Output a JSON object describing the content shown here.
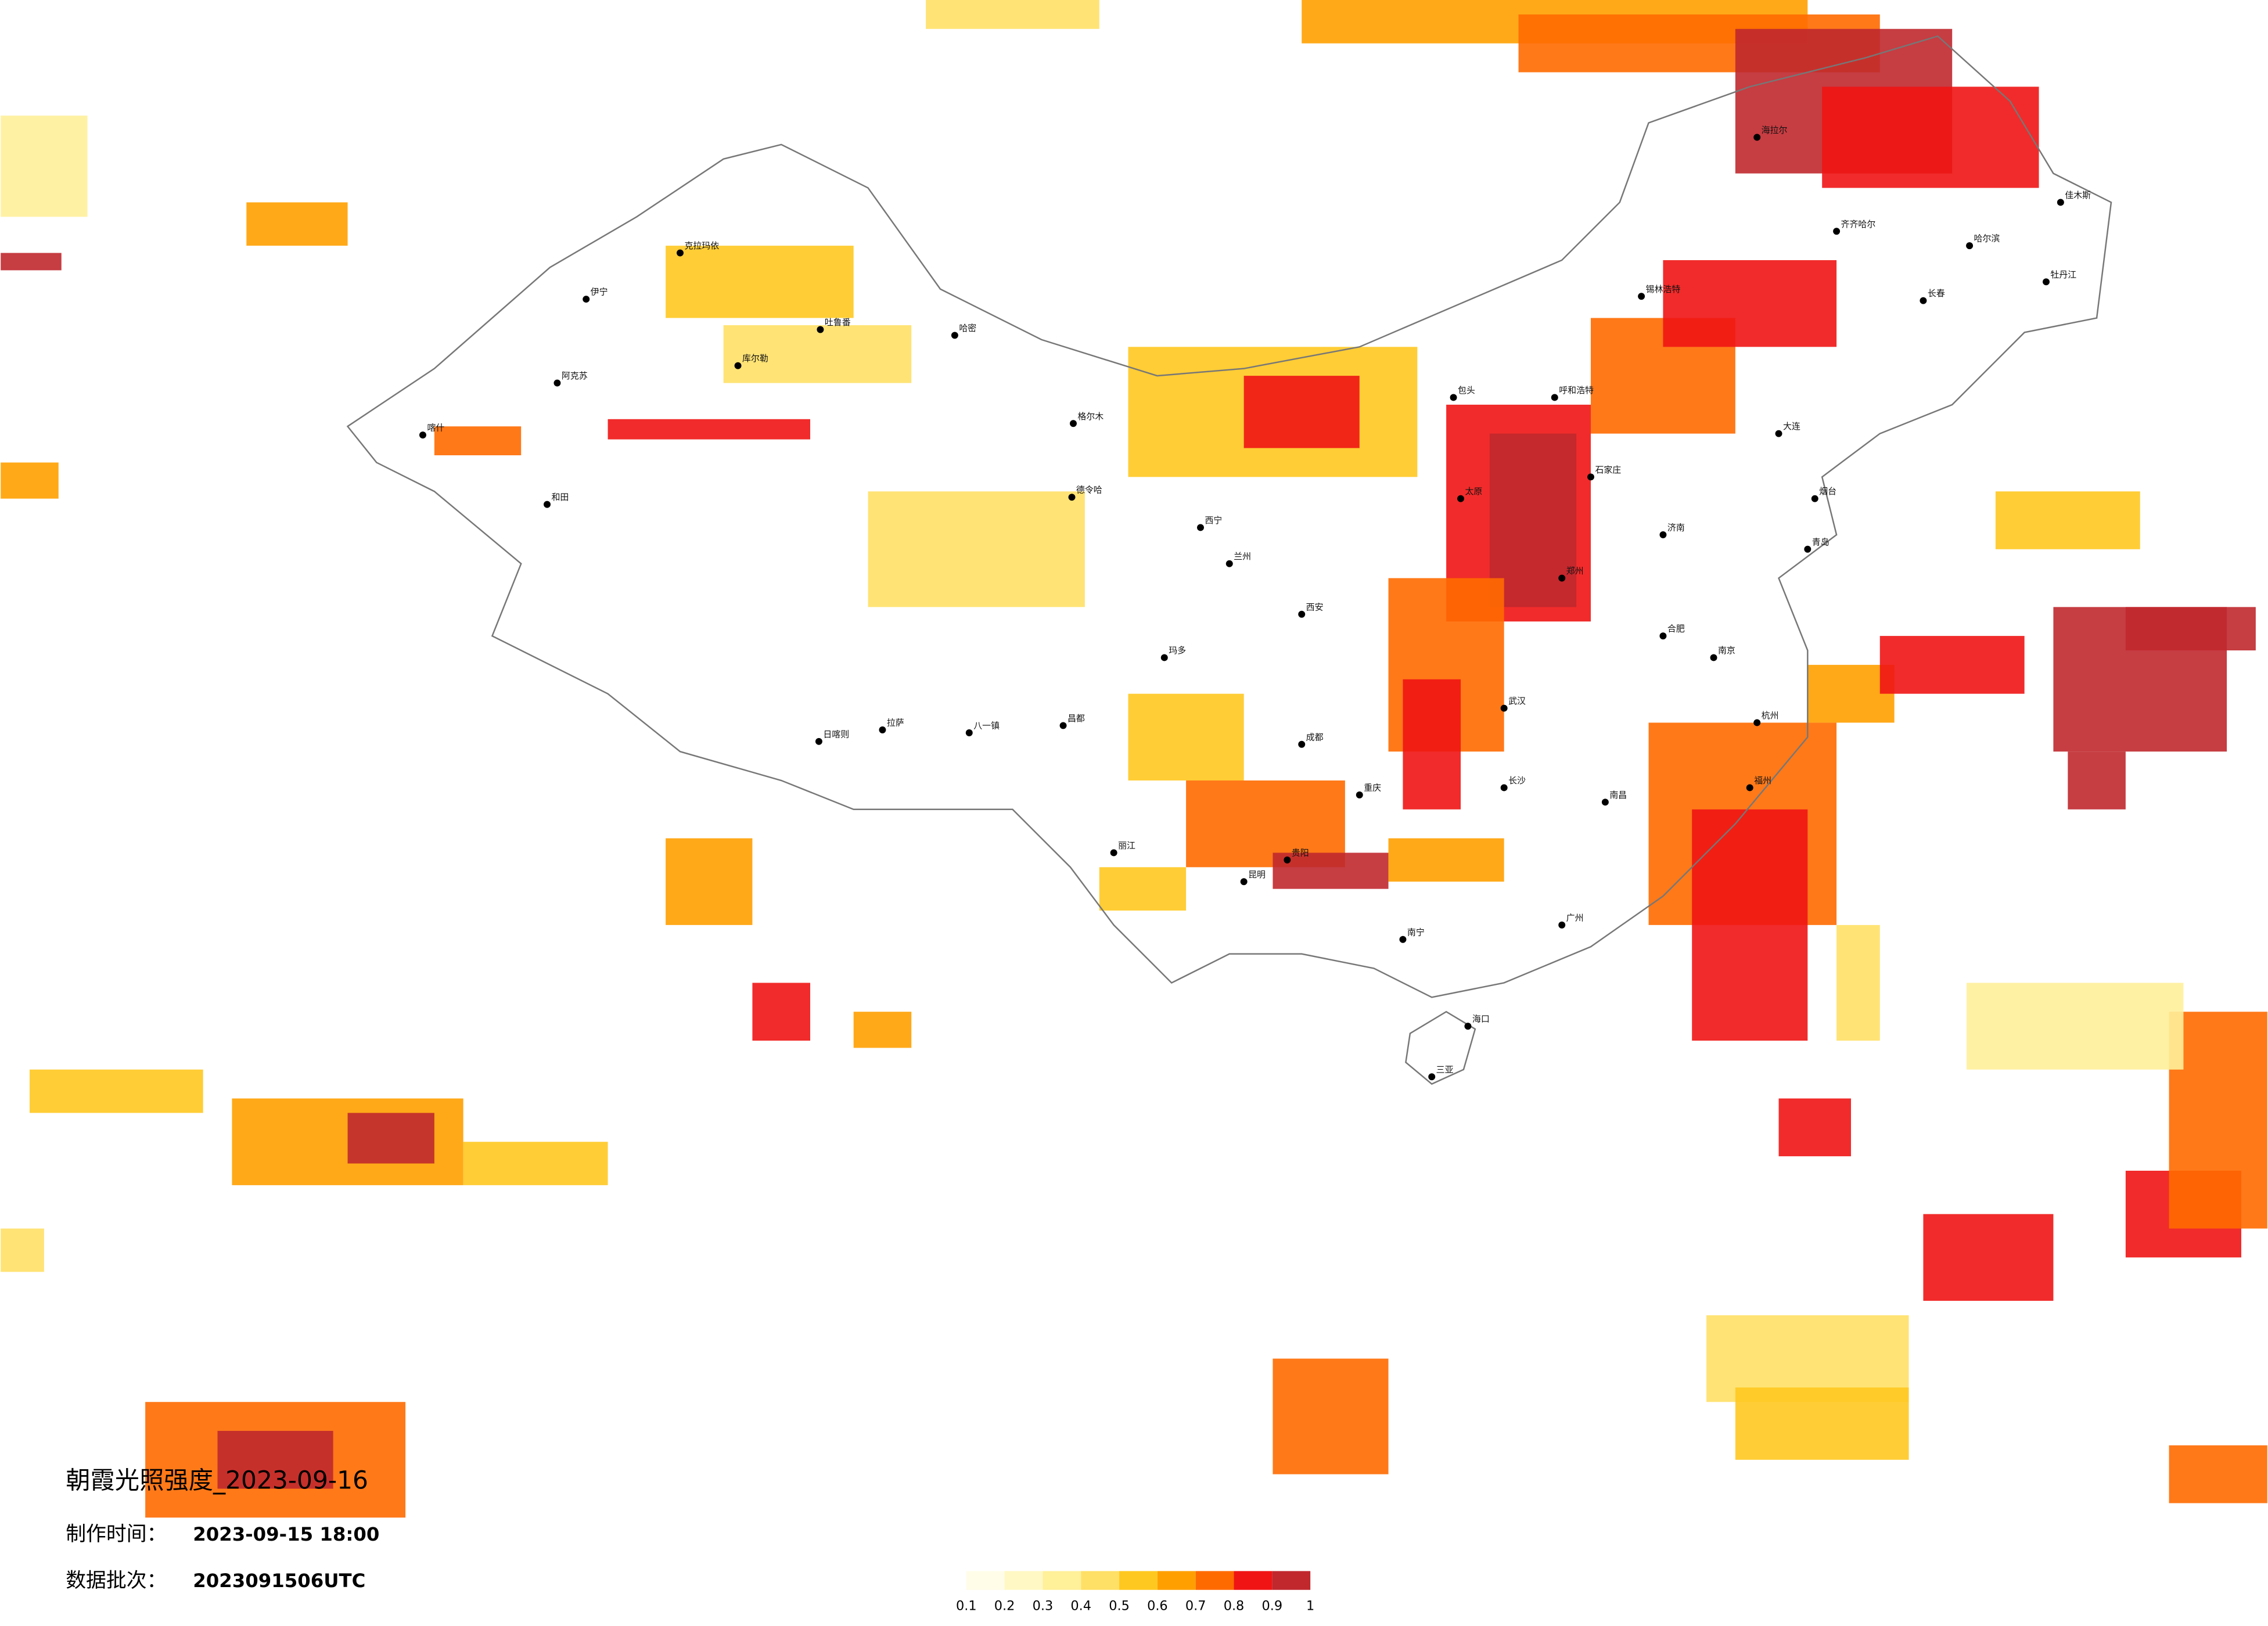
{
  "title": "朝霞光照强度_2023-09-16",
  "made_time": {
    "label": "制作时间：",
    "value": "2023-09-15 18:00"
  },
  "batch": {
    "label": "数据批次：",
    "value": "2023091506UTC"
  },
  "legend": {
    "ticks": [
      0.1,
      0.2,
      0.3,
      0.4,
      0.5,
      0.6,
      0.7,
      0.8,
      0.9,
      1
    ],
    "colors": [
      "#fffce8",
      "#fff8c4",
      "#fff09a",
      "#ffe066",
      "#ffc820",
      "#ffa000",
      "#ff6a00",
      "#f01414",
      "#c0282e"
    ]
  },
  "cities": [
    "伊宁",
    "阿克苏",
    "和田",
    "喀什",
    "哈密",
    "吐鲁番",
    "库尔勒",
    "克拉玛依",
    "格尔木",
    "德令哈",
    "拉萨",
    "日喀则",
    "八一镇",
    "昌都",
    "玛多",
    "西宁",
    "兰州",
    "呼和浩特",
    "包头",
    "锡林浩特",
    "哈尔滨",
    "长春",
    "齐齐哈尔",
    "海拉尔",
    "牡丹江",
    "佳木斯",
    "石家庄",
    "济南",
    "郑州",
    "西安",
    "太原",
    "武汉",
    "长沙",
    "成都",
    "重庆",
    "贵阳",
    "昆明",
    "南宁",
    "广州",
    "福州",
    "南昌",
    "合肥",
    "南京",
    "杭州",
    "海口",
    "三亚",
    "大连",
    "烟台",
    "青岛",
    "丽江"
  ]
}
